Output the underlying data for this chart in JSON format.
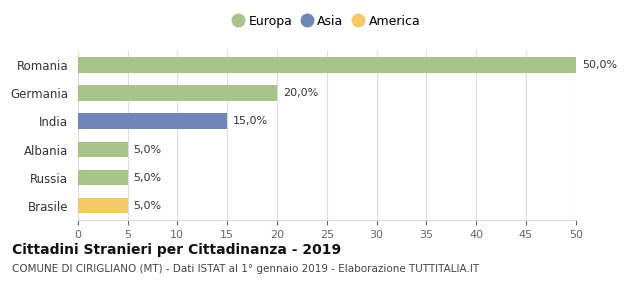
{
  "categories": [
    "Romania",
    "Germania",
    "India",
    "Albania",
    "Russia",
    "Brasile"
  ],
  "values": [
    50.0,
    20.0,
    15.0,
    5.0,
    5.0,
    5.0
  ],
  "bar_colors": [
    "#a8c48a",
    "#a8c48a",
    "#6e86b8",
    "#a8c48a",
    "#a8c48a",
    "#f5c96a"
  ],
  "labels": [
    "50,0%",
    "20,0%",
    "15,0%",
    "5,0%",
    "5,0%",
    "5,0%"
  ],
  "xlim": [
    0,
    50
  ],
  "xticks": [
    0,
    5,
    10,
    15,
    20,
    25,
    30,
    35,
    40,
    45,
    50
  ],
  "legend": [
    {
      "label": "Europa",
      "color": "#a8c48a"
    },
    {
      "label": "Asia",
      "color": "#6e86b8"
    },
    {
      "label": "America",
      "color": "#f5c96a"
    }
  ],
  "title": "Cittadini Stranieri per Cittadinanza - 2019",
  "subtitle": "COMUNE DI CIRIGLIANO (MT) - Dati ISTAT al 1° gennaio 2019 - Elaborazione TUTTITALIA.IT",
  "background_color": "#ffffff",
  "bar_height": 0.55,
  "grid_color": "#dddddd",
  "label_fontsize": 8.0,
  "ytick_fontsize": 8.5,
  "xtick_fontsize": 8.0,
  "legend_fontsize": 9.0,
  "title_fontsize": 10.0,
  "subtitle_fontsize": 7.5
}
